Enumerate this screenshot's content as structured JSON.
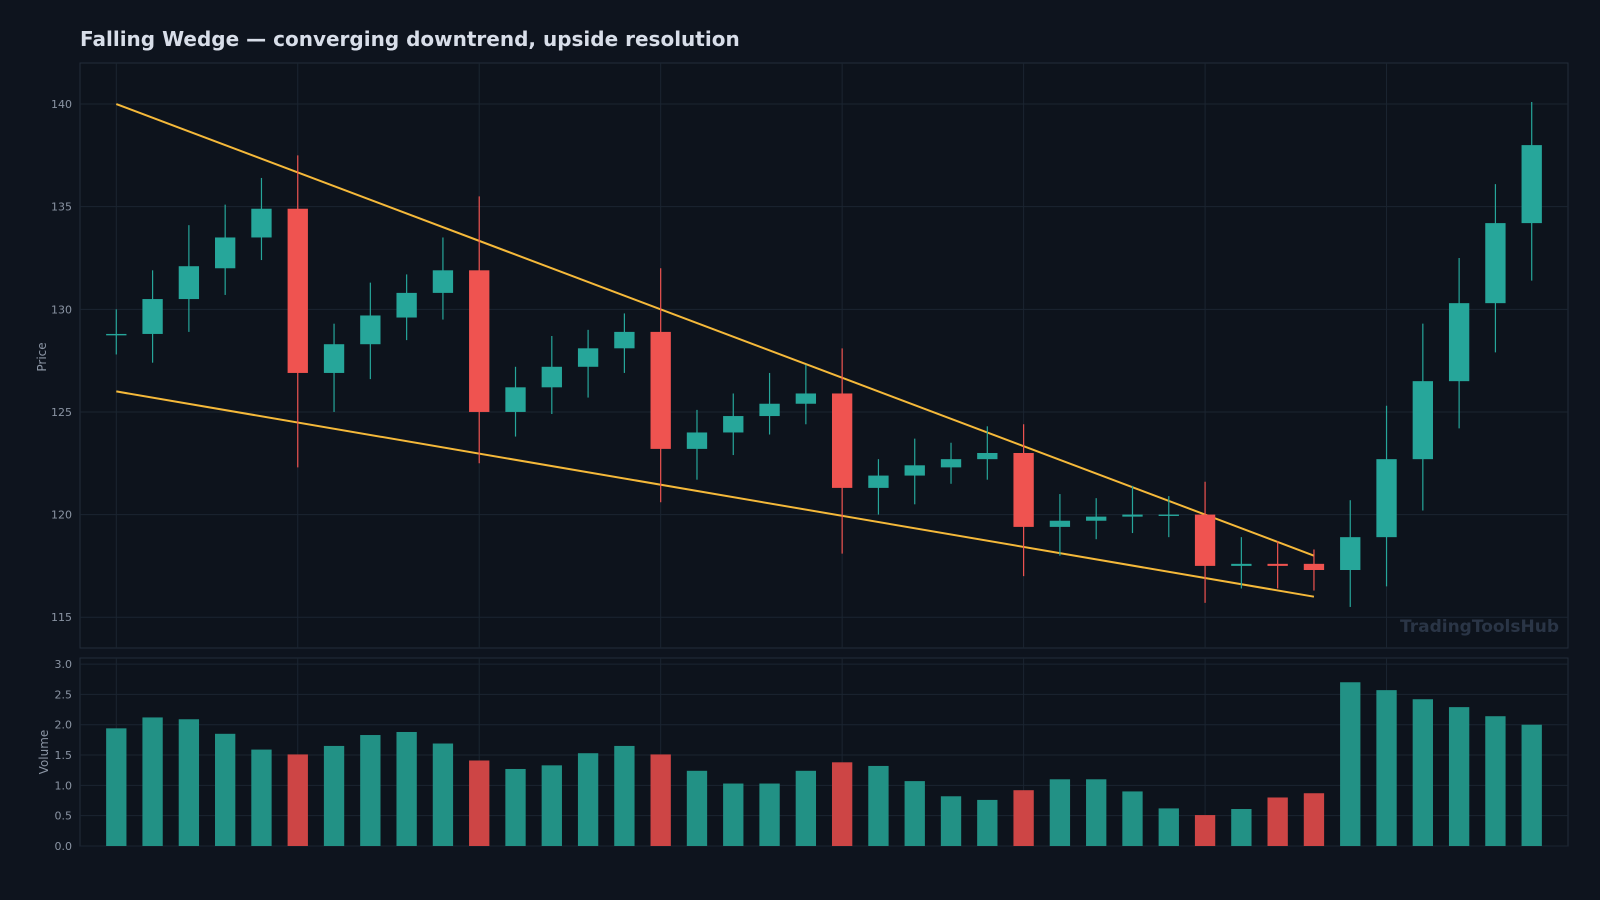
{
  "colors": {
    "background": "#0e141e",
    "panel": "#0d131c",
    "panel_border": "#232d3a",
    "grid": "#1b2531",
    "text": "#d8dee9",
    "tick_text": "#8a94a3",
    "up": "#26a69a",
    "down": "#ef5350",
    "volume_up": "#229185",
    "volume_down": "#cd4545",
    "trendline": "#f5b93a",
    "watermark": "#2a3546"
  },
  "chart_data": {
    "type": "candlestick",
    "title": "Falling Wedge — converging downtrend, upside resolution",
    "watermark": "TradingToolsHub",
    "price_panel": {
      "ylabel": "Price",
      "ylim": [
        113.5,
        142
      ],
      "yticks": [
        115,
        120,
        125,
        130,
        135,
        140
      ]
    },
    "volume_panel": {
      "ylabel": "Volume",
      "ylim": [
        0,
        3.1
      ],
      "yticks": [
        0.0,
        0.5,
        1.0,
        1.5,
        2.0,
        2.5,
        3.0
      ],
      "ytick_labels": [
        "0.0",
        "0.5",
        "1.0",
        "1.5",
        "2.0",
        "2.5",
        "3.0"
      ]
    },
    "x_range": [
      -1,
      40
    ],
    "x_gridlines": [
      0,
      5,
      10,
      15,
      20,
      25,
      30,
      35
    ],
    "candles": [
      {
        "o": 128.8,
        "h": 130.0,
        "l": 127.8,
        "c": 128.8,
        "v": 1.94
      },
      {
        "o": 128.8,
        "h": 131.9,
        "l": 127.4,
        "c": 130.5,
        "v": 2.12
      },
      {
        "o": 130.5,
        "h": 134.1,
        "l": 128.9,
        "c": 132.1,
        "v": 2.09
      },
      {
        "o": 132.0,
        "h": 135.1,
        "l": 130.7,
        "c": 133.5,
        "v": 1.85
      },
      {
        "o": 133.5,
        "h": 136.4,
        "l": 132.4,
        "c": 134.9,
        "v": 1.59
      },
      {
        "o": 134.9,
        "h": 137.5,
        "l": 122.3,
        "c": 126.9,
        "v": 1.51
      },
      {
        "o": 126.9,
        "h": 129.3,
        "l": 125.0,
        "c": 128.3,
        "v": 1.65
      },
      {
        "o": 128.3,
        "h": 131.3,
        "l": 126.6,
        "c": 129.7,
        "v": 1.83
      },
      {
        "o": 129.6,
        "h": 131.7,
        "l": 128.5,
        "c": 130.8,
        "v": 1.88
      },
      {
        "o": 130.8,
        "h": 133.5,
        "l": 129.5,
        "c": 131.9,
        "v": 1.69
      },
      {
        "o": 131.9,
        "h": 135.5,
        "l": 122.5,
        "c": 125.0,
        "v": 1.41
      },
      {
        "o": 125.0,
        "h": 127.2,
        "l": 123.8,
        "c": 126.2,
        "v": 1.27
      },
      {
        "o": 126.2,
        "h": 128.7,
        "l": 124.9,
        "c": 127.2,
        "v": 1.33
      },
      {
        "o": 127.2,
        "h": 129.0,
        "l": 125.7,
        "c": 128.1,
        "v": 1.53
      },
      {
        "o": 128.1,
        "h": 129.8,
        "l": 126.9,
        "c": 128.9,
        "v": 1.65
      },
      {
        "o": 128.9,
        "h": 132.0,
        "l": 120.6,
        "c": 123.2,
        "v": 1.51
      },
      {
        "o": 123.2,
        "h": 125.1,
        "l": 121.7,
        "c": 124.0,
        "v": 1.24
      },
      {
        "o": 124.0,
        "h": 125.9,
        "l": 122.9,
        "c": 124.8,
        "v": 1.03
      },
      {
        "o": 124.8,
        "h": 126.9,
        "l": 123.9,
        "c": 125.4,
        "v": 1.03
      },
      {
        "o": 125.4,
        "h": 127.3,
        "l": 124.4,
        "c": 125.9,
        "v": 1.24
      },
      {
        "o": 125.9,
        "h": 128.1,
        "l": 118.1,
        "c": 121.3,
        "v": 1.38
      },
      {
        "o": 121.3,
        "h": 122.7,
        "l": 120.0,
        "c": 121.9,
        "v": 1.32
      },
      {
        "o": 121.9,
        "h": 123.7,
        "l": 120.5,
        "c": 122.4,
        "v": 1.07
      },
      {
        "o": 122.3,
        "h": 123.5,
        "l": 121.5,
        "c": 122.7,
        "v": 0.82
      },
      {
        "o": 122.7,
        "h": 124.3,
        "l": 121.7,
        "c": 123.0,
        "v": 0.76
      },
      {
        "o": 123.0,
        "h": 124.4,
        "l": 117.0,
        "c": 119.4,
        "v": 0.92
      },
      {
        "o": 119.4,
        "h": 121.0,
        "l": 118.0,
        "c": 119.7,
        "v": 1.1
      },
      {
        "o": 119.7,
        "h": 120.8,
        "l": 118.8,
        "c": 119.9,
        "v": 1.1
      },
      {
        "o": 119.9,
        "h": 121.4,
        "l": 119.1,
        "c": 120.0,
        "v": 0.9
      },
      {
        "o": 120.0,
        "h": 120.9,
        "l": 118.9,
        "c": 120.0,
        "v": 0.62
      },
      {
        "o": 120.0,
        "h": 121.6,
        "l": 115.7,
        "c": 117.5,
        "v": 0.51
      },
      {
        "o": 117.5,
        "h": 118.9,
        "l": 116.4,
        "c": 117.6,
        "v": 0.61
      },
      {
        "o": 117.6,
        "h": 118.7,
        "l": 116.4,
        "c": 117.5,
        "v": 0.8
      },
      {
        "o": 117.6,
        "h": 118.3,
        "l": 116.3,
        "c": 117.3,
        "v": 0.87
      },
      {
        "o": 117.3,
        "h": 120.7,
        "l": 115.5,
        "c": 118.9,
        "v": 2.7
      },
      {
        "o": 118.9,
        "h": 125.3,
        "l": 116.5,
        "c": 122.7,
        "v": 2.57
      },
      {
        "o": 122.7,
        "h": 129.3,
        "l": 120.2,
        "c": 126.5,
        "v": 2.42
      },
      {
        "o": 126.5,
        "h": 132.5,
        "l": 124.2,
        "c": 130.3,
        "v": 2.29
      },
      {
        "o": 130.3,
        "h": 136.1,
        "l": 127.9,
        "c": 134.2,
        "v": 2.14
      },
      {
        "o": 134.2,
        "h": 140.1,
        "l": 131.4,
        "c": 138.0,
        "v": 2.0
      }
    ],
    "trendlines": [
      {
        "name": "upper",
        "x": [
          0,
          33
        ],
        "y": [
          140.0,
          118.0
        ]
      },
      {
        "name": "lower",
        "x": [
          0,
          33
        ],
        "y": [
          126.0,
          116.0
        ]
      }
    ]
  }
}
